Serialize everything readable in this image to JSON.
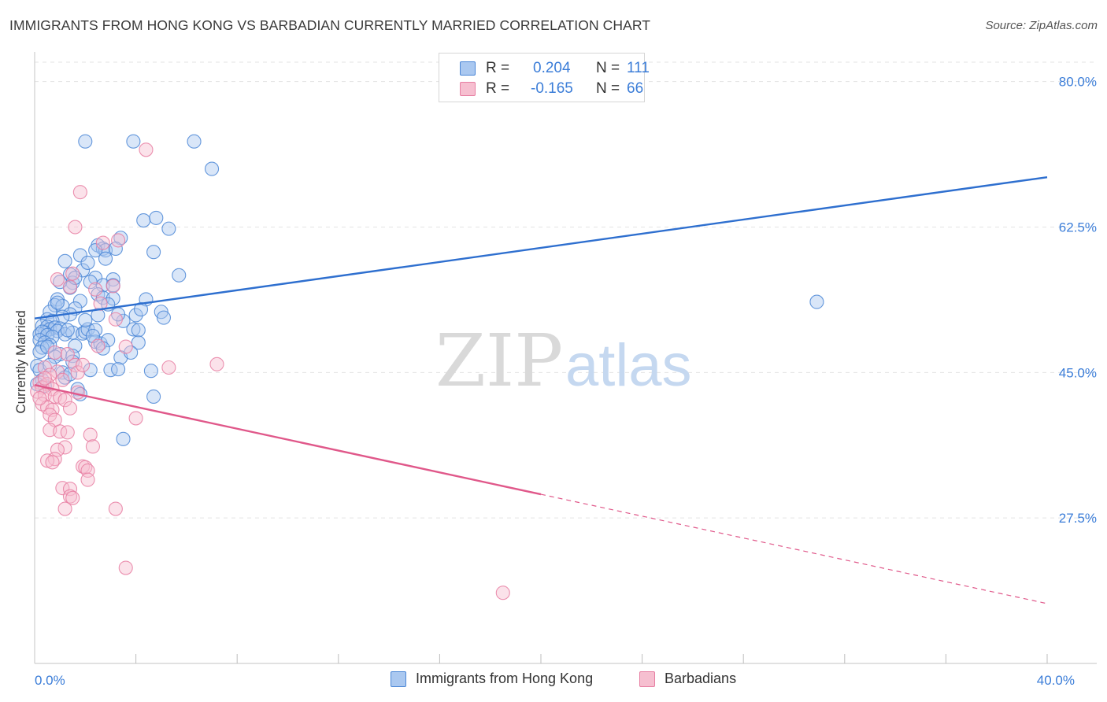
{
  "header": {
    "title": "IMMIGRANTS FROM HONG KONG VS BARBADIAN CURRENTLY MARRIED CORRELATION CHART",
    "source": "Source: ZipAtlas.com"
  },
  "watermark": {
    "part1": "ZIP",
    "part2": "atlas"
  },
  "legend": {
    "series1": {
      "r_label": "R =",
      "r_value": "0.204",
      "n_label": "N =",
      "n_value": "111"
    },
    "series2": {
      "r_label": "R =",
      "r_value": "-0.165",
      "n_label": "N =",
      "n_value": "66"
    }
  },
  "colors": {
    "blue_fill": "#aac8f0",
    "blue_stroke": "#4a86d6",
    "blue_line": "#2e6fcf",
    "pink_fill": "#f6bfd0",
    "pink_stroke": "#e77ea2",
    "pink_line": "#e0588a",
    "axis_text": "#3b7dd8",
    "grid": "#e3e3e3"
  },
  "chart_data": {
    "type": "scatter",
    "title": "IMMIGRANTS FROM HONG KONG VS BARBADIAN CURRENTLY MARRIED CORRELATION CHART",
    "xlabel": "",
    "ylabel": "Currently Married",
    "xlim": [
      0,
      40
    ],
    "ylim": [
      10,
      83
    ],
    "x_tick_labels": [
      {
        "value": 0,
        "label": "0.0%"
      },
      {
        "value": 40,
        "label": "40.0%"
      }
    ],
    "x_minor_ticks": [
      4,
      8,
      12,
      16,
      20,
      24,
      28,
      32,
      36,
      40
    ],
    "y_ticks": [
      {
        "value": 80,
        "label": "80.0%"
      },
      {
        "value": 62.5,
        "label": "62.5%"
      },
      {
        "value": 45,
        "label": "45.0%"
      },
      {
        "value": 27.5,
        "label": "27.5%"
      }
    ],
    "grid": true,
    "series": [
      {
        "name": "Immigrants from Hong Kong",
        "color": "#4a86d6",
        "R": 0.204,
        "N": 111,
        "trend": {
          "x0": 0,
          "y0": 51.5,
          "x1": 40,
          "y1": 68.5,
          "dashed_from": null
        },
        "points": [
          [
            2.0,
            72.8
          ],
          [
            3.9,
            72.8
          ],
          [
            6.3,
            72.8
          ],
          [
            7.0,
            69.5
          ],
          [
            4.3,
            63.3
          ],
          [
            4.8,
            63.6
          ],
          [
            5.3,
            62.3
          ],
          [
            3.4,
            61.2
          ],
          [
            2.5,
            60.3
          ],
          [
            2.7,
            59.9
          ],
          [
            2.8,
            59.7
          ],
          [
            3.2,
            59.9
          ],
          [
            4.7,
            59.5
          ],
          [
            2.4,
            59.7
          ],
          [
            1.8,
            59.1
          ],
          [
            1.2,
            58.4
          ],
          [
            1.9,
            57.3
          ],
          [
            1.4,
            56.8
          ],
          [
            5.7,
            56.7
          ],
          [
            2.4,
            56.4
          ],
          [
            3.1,
            56.2
          ],
          [
            2.2,
            55.9
          ],
          [
            1.5,
            55.8
          ],
          [
            1.4,
            55.2
          ],
          [
            2.7,
            55.5
          ],
          [
            3.1,
            55.5
          ],
          [
            2.5,
            54.4
          ],
          [
            2.7,
            54.0
          ],
          [
            3.1,
            53.9
          ],
          [
            0.9,
            53.8
          ],
          [
            1.8,
            53.6
          ],
          [
            4.4,
            53.8
          ],
          [
            0.8,
            53.1
          ],
          [
            1.1,
            53.0
          ],
          [
            1.6,
            52.7
          ],
          [
            0.6,
            52.3
          ],
          [
            1.4,
            52.0
          ],
          [
            2.5,
            51.9
          ],
          [
            1.1,
            51.7
          ],
          [
            0.5,
            51.4
          ],
          [
            0.7,
            51.2
          ],
          [
            3.5,
            51.2
          ],
          [
            3.3,
            52.0
          ],
          [
            4.0,
            51.9
          ],
          [
            5.0,
            52.3
          ],
          [
            5.1,
            51.6
          ],
          [
            0.3,
            50.6
          ],
          [
            0.5,
            50.5
          ],
          [
            0.6,
            50.2
          ],
          [
            0.8,
            50.4
          ],
          [
            1.0,
            50.3
          ],
          [
            0.9,
            50.0
          ],
          [
            0.4,
            49.8
          ],
          [
            0.2,
            49.6
          ],
          [
            0.3,
            49.9
          ],
          [
            0.5,
            49.5
          ],
          [
            0.7,
            49.3
          ],
          [
            1.2,
            49.6
          ],
          [
            1.5,
            49.8
          ],
          [
            1.9,
            49.7
          ],
          [
            2.0,
            49.9
          ],
          [
            2.1,
            50.2
          ],
          [
            2.4,
            50.1
          ],
          [
            3.9,
            50.2
          ],
          [
            4.1,
            50.1
          ],
          [
            0.2,
            48.9
          ],
          [
            0.4,
            48.6
          ],
          [
            0.6,
            48.3
          ],
          [
            0.3,
            48.0
          ],
          [
            2.4,
            48.7
          ],
          [
            2.6,
            48.5
          ],
          [
            2.9,
            48.9
          ],
          [
            4.1,
            48.6
          ],
          [
            1.6,
            48.2
          ],
          [
            0.2,
            47.5
          ],
          [
            1.0,
            47.2
          ],
          [
            1.5,
            47.0
          ],
          [
            3.4,
            46.8
          ],
          [
            0.1,
            45.8
          ],
          [
            0.2,
            45.3
          ],
          [
            1.1,
            45.0
          ],
          [
            2.2,
            45.3
          ],
          [
            3.0,
            45.3
          ],
          [
            3.3,
            45.4
          ],
          [
            4.6,
            45.2
          ],
          [
            0.3,
            44.1
          ],
          [
            1.2,
            44.4
          ],
          [
            0.1,
            43.6
          ],
          [
            0.4,
            43.4
          ],
          [
            1.7,
            43.0
          ],
          [
            1.8,
            42.4
          ],
          [
            4.7,
            42.1
          ],
          [
            3.5,
            37.0
          ],
          [
            30.9,
            53.5
          ],
          [
            2.8,
            58.7
          ],
          [
            1.0,
            55.9
          ],
          [
            2.1,
            58.2
          ],
          [
            0.8,
            46.9
          ],
          [
            2.9,
            53.2
          ],
          [
            4.2,
            52.6
          ],
          [
            1.3,
            50.1
          ],
          [
            2.3,
            49.4
          ],
          [
            0.6,
            45.9
          ],
          [
            1.4,
            44.8
          ],
          [
            3.8,
            47.4
          ],
          [
            0.9,
            53.4
          ],
          [
            2.0,
            51.3
          ],
          [
            1.6,
            56.4
          ],
          [
            0.5,
            48.1
          ],
          [
            2.7,
            47.9
          ],
          [
            1.5,
            46.3
          ]
        ]
      },
      {
        "name": "Barbadians",
        "color": "#e77ea2",
        "R": -0.165,
        "N": 66,
        "trend": {
          "x0": 0,
          "y0": 43.5,
          "x1": 40,
          "y1": 17.2,
          "dashed_from": 20
        },
        "points": [
          [
            4.4,
            71.8
          ],
          [
            1.8,
            66.7
          ],
          [
            1.6,
            62.5
          ],
          [
            3.3,
            60.9
          ],
          [
            2.7,
            60.6
          ],
          [
            0.9,
            56.2
          ],
          [
            1.4,
            55.3
          ],
          [
            2.4,
            55.0
          ],
          [
            3.1,
            55.4
          ],
          [
            1.5,
            56.9
          ],
          [
            2.6,
            53.3
          ],
          [
            3.2,
            51.4
          ],
          [
            2.5,
            48.2
          ],
          [
            3.6,
            48.1
          ],
          [
            1.3,
            47.2
          ],
          [
            0.8,
            47.4
          ],
          [
            7.2,
            46.0
          ],
          [
            5.3,
            45.6
          ],
          [
            1.6,
            45.9
          ],
          [
            0.4,
            45.6
          ],
          [
            0.9,
            45.1
          ],
          [
            1.7,
            45.0
          ],
          [
            0.6,
            44.7
          ],
          [
            1.1,
            44.1
          ],
          [
            0.2,
            43.8
          ],
          [
            0.5,
            43.6
          ],
          [
            0.3,
            43.2
          ],
          [
            0.7,
            43.0
          ],
          [
            0.1,
            42.7
          ],
          [
            0.4,
            42.3
          ],
          [
            0.8,
            42.1
          ],
          [
            1.0,
            42.0
          ],
          [
            1.2,
            41.7
          ],
          [
            0.3,
            41.2
          ],
          [
            0.5,
            40.8
          ],
          [
            0.7,
            40.5
          ],
          [
            1.4,
            40.7
          ],
          [
            4.0,
            39.5
          ],
          [
            0.6,
            39.9
          ],
          [
            0.8,
            39.3
          ],
          [
            0.6,
            38.1
          ],
          [
            1.0,
            37.9
          ],
          [
            1.3,
            37.8
          ],
          [
            2.2,
            37.5
          ],
          [
            1.2,
            36.0
          ],
          [
            2.3,
            36.1
          ],
          [
            0.9,
            35.7
          ],
          [
            0.8,
            34.6
          ],
          [
            0.5,
            34.4
          ],
          [
            0.7,
            34.2
          ],
          [
            1.9,
            33.7
          ],
          [
            2.0,
            33.6
          ],
          [
            2.1,
            33.2
          ],
          [
            2.1,
            32.1
          ],
          [
            1.1,
            31.1
          ],
          [
            1.4,
            31.0
          ],
          [
            1.4,
            30.1
          ],
          [
            1.5,
            29.9
          ],
          [
            1.2,
            28.6
          ],
          [
            3.2,
            28.6
          ],
          [
            3.6,
            21.5
          ],
          [
            18.5,
            18.5
          ],
          [
            0.4,
            44.3
          ],
          [
            1.9,
            45.9
          ],
          [
            0.2,
            41.9
          ],
          [
            1.7,
            42.6
          ]
        ]
      }
    ]
  },
  "axes": {
    "x_label_left": "0.0%",
    "x_label_right": "40.0%",
    "y_tick_labels": [
      "80.0%",
      "62.5%",
      "45.0%",
      "27.5%"
    ]
  },
  "bottom_legend": {
    "series1_label": "Immigrants from Hong Kong",
    "series2_label": "Barbadians"
  }
}
